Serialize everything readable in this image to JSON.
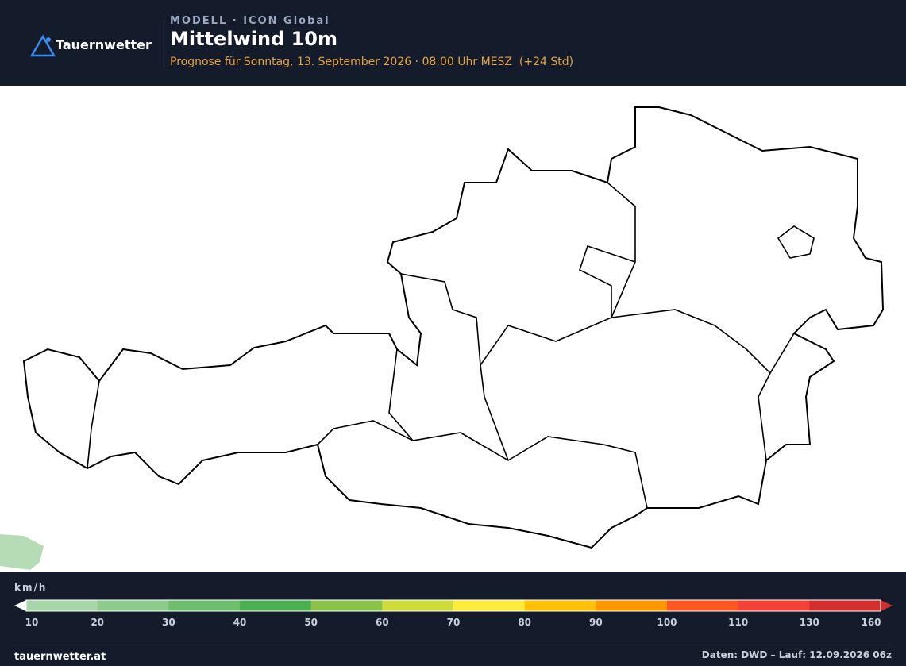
{
  "header": {
    "brand": "Tauernwetter",
    "model": "MODELL · ICON Global",
    "title": "Mittelwind 10m",
    "subtitle": "Prognose für Sonntag, 13. September 2026 · 08:00 Uhr MESZ  (+24 Std)"
  },
  "legend": {
    "unit": "km/h",
    "ticks": [
      10,
      20,
      30,
      40,
      50,
      60,
      70,
      80,
      90,
      100,
      110,
      130,
      160
    ],
    "colors": [
      "#a9d6a9",
      "#8ccb8c",
      "#6dbf6d",
      "#4caf50",
      "#8bc34a",
      "#cddc39",
      "#ffeb3b",
      "#ffc107",
      "#ff9800",
      "#ff5722",
      "#f44336",
      "#d32f2f"
    ]
  },
  "footer": {
    "site": "tauernwetter.at",
    "source": "Daten: DWD – Lauf: 12.09.2026 06z"
  }
}
